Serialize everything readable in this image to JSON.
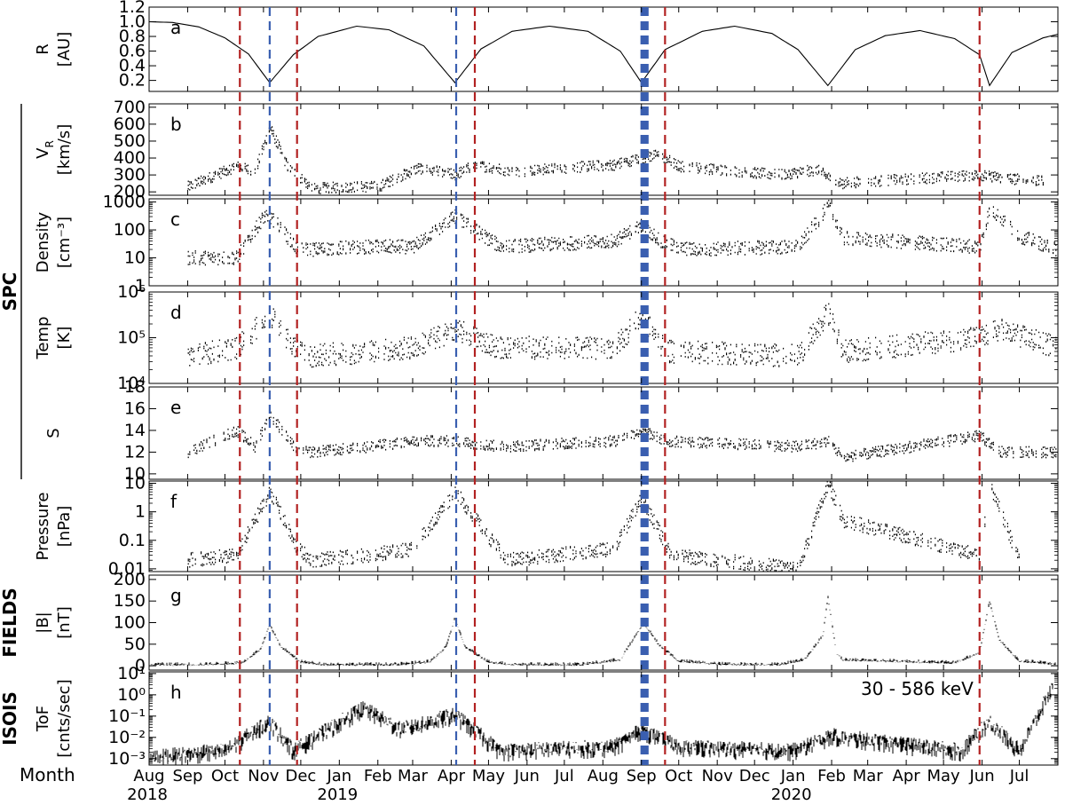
{
  "x_axis": {
    "title": "Month",
    "start": "2018-08-01",
    "end": "2020-08-01",
    "months": [
      "Aug",
      "Sep",
      "Oct",
      "Nov",
      "Dec",
      "Jan",
      "Feb",
      "Mar",
      "Apr",
      "May",
      "Jun",
      "Jul",
      "Aug",
      "Sep",
      "Oct",
      "Nov",
      "Dec",
      "Jan",
      "Feb",
      "Mar",
      "Apr",
      "May",
      "Jun",
      "Jul"
    ],
    "years": [
      {
        "label": "2018",
        "date": "2018-08-01"
      },
      {
        "label": "2019",
        "date": "2019-01-01"
      },
      {
        "label": "2020",
        "date": "2020-01-01"
      }
    ]
  },
  "groups": [
    {
      "label": "SPC",
      "panels": [
        "b",
        "c",
        "d",
        "e"
      ]
    },
    {
      "label": "FIELDS",
      "panels": [
        "g"
      ]
    },
    {
      "label": "ISOIS",
      "panels": [
        "h"
      ]
    }
  ],
  "vertical_markers": {
    "red": [
      "2018-10-13",
      "2018-11-28",
      "2019-04-20",
      "2019-09-20",
      "2020-05-30"
    ],
    "blue": [
      "2018-11-06",
      "2019-04-05",
      "2019-09-01",
      "2019-09-02",
      "2019-09-03",
      "2019-09-04",
      "2019-09-05",
      "2019-09-06"
    ],
    "colors": {
      "red": "#b22222",
      "blue": "#3a5fb0"
    }
  },
  "annotation": "30 - 586 keV",
  "perihelia": [
    "2018-11-06",
    "2019-04-04",
    "2019-09-01",
    "2020-01-29",
    "2020-06-07"
  ],
  "chart_data": [
    {
      "type": "line",
      "panel": "a",
      "ylabel": [
        "R",
        "[AU]"
      ],
      "yticks": [
        "0.2",
        "0.4",
        "0.6",
        "0.8",
        "1.0",
        "1.2"
      ],
      "ylim": [
        0.05,
        1.2
      ],
      "scale": "linear",
      "series": [
        {
          "x": [
            "2018-08-01",
            "2018-08-20",
            "2018-09-10",
            "2018-10-01",
            "2018-10-20",
            "2018-11-06",
            "2018-11-25",
            "2018-12-15",
            "2019-01-15",
            "2019-02-10",
            "2019-03-10",
            "2019-04-04",
            "2019-04-25",
            "2019-05-20",
            "2019-06-19",
            "2019-07-20",
            "2019-08-15",
            "2019-09-01",
            "2019-09-20",
            "2019-10-20",
            "2019-11-15",
            "2019-12-15",
            "2020-01-05",
            "2020-01-29",
            "2020-02-20",
            "2020-03-15",
            "2020-04-12",
            "2020-05-10",
            "2020-05-30",
            "2020-06-07",
            "2020-06-25",
            "2020-07-20",
            "2020-08-01"
          ],
          "y": [
            1.0,
            0.99,
            0.93,
            0.78,
            0.56,
            0.17,
            0.55,
            0.8,
            0.94,
            0.89,
            0.67,
            0.17,
            0.63,
            0.87,
            0.94,
            0.87,
            0.6,
            0.17,
            0.62,
            0.87,
            0.94,
            0.84,
            0.62,
            0.13,
            0.62,
            0.81,
            0.88,
            0.77,
            0.55,
            0.13,
            0.58,
            0.78,
            0.83
          ]
        }
      ]
    },
    {
      "type": "scatter",
      "panel": "b",
      "ylabel": [
        "V_R",
        "[km/s]"
      ],
      "subscript": "R",
      "yticks": [
        "200",
        "300",
        "400",
        "500",
        "600",
        "700"
      ],
      "ylim": [
        180,
        720
      ],
      "scale": "linear",
      "envelope": [
        [
          "2018-09-01",
          230
        ],
        [
          "2018-10-10",
          350
        ],
        [
          "2018-10-25",
          320
        ],
        [
          "2018-11-06",
          580
        ],
        [
          "2018-11-20",
          350
        ],
        [
          "2018-12-10",
          220
        ],
        [
          "2019-01-10",
          230
        ],
        [
          "2019-02-01",
          230
        ],
        [
          "2019-03-05",
          340
        ],
        [
          "2019-04-04",
          300
        ],
        [
          "2019-04-20",
          360
        ],
        [
          "2019-05-20",
          320
        ],
        [
          "2019-08-10",
          360
        ],
        [
          "2019-09-01",
          400
        ],
        [
          "2019-09-15",
          420
        ],
        [
          "2019-10-01",
          350
        ],
        [
          "2019-12-20",
          300
        ],
        [
          "2020-01-20",
          330
        ],
        [
          "2020-02-05",
          250
        ],
        [
          "2020-05-30",
          300
        ],
        [
          "2020-06-20",
          280
        ],
        [
          "2020-07-20",
          260
        ]
      ]
    },
    {
      "type": "scatter",
      "panel": "c",
      "ylabel": [
        "Density",
        "[cm⁻³]"
      ],
      "yticks": [
        "1",
        "10",
        "100",
        "1000"
      ],
      "ylim": [
        1,
        1300
      ],
      "scale": "log",
      "envelope": [
        [
          "2018-09-01",
          10
        ],
        [
          "2018-10-10",
          10
        ],
        [
          "2018-11-01",
          300
        ],
        [
          "2018-11-10",
          200
        ],
        [
          "2018-11-28",
          20
        ],
        [
          "2018-12-10",
          20
        ],
        [
          "2019-01-25",
          25
        ],
        [
          "2019-03-01",
          25
        ],
        [
          "2019-04-04",
          300
        ],
        [
          "2019-05-10",
          25
        ],
        [
          "2019-08-10",
          40
        ],
        [
          "2019-09-01",
          150
        ],
        [
          "2019-09-20",
          30
        ],
        [
          "2019-10-10",
          20
        ],
        [
          "2020-01-05",
          25
        ],
        [
          "2020-01-29",
          700
        ],
        [
          "2020-02-10",
          50
        ],
        [
          "2020-05-30",
          25
        ],
        [
          "2020-06-07",
          600
        ],
        [
          "2020-07-01",
          60
        ],
        [
          "2020-07-31",
          20
        ]
      ]
    },
    {
      "type": "scatter",
      "panel": "d",
      "ylabel": [
        "Temp",
        "[K]"
      ],
      "yticks": [
        "10⁴",
        "10⁵",
        "10⁶"
      ],
      "ylim": [
        10000,
        1000000
      ],
      "scale": "log",
      "envelope": [
        [
          "2018-09-01",
          40000
        ],
        [
          "2018-10-10",
          60000
        ],
        [
          "2018-11-06",
          300000
        ],
        [
          "2018-11-25",
          60000
        ],
        [
          "2018-12-10",
          40000
        ],
        [
          "2019-01-25",
          50000
        ],
        [
          "2019-03-01",
          60000
        ],
        [
          "2019-04-04",
          150000
        ],
        [
          "2019-05-10",
          60000
        ],
        [
          "2019-08-10",
          60000
        ],
        [
          "2019-09-01",
          300000
        ],
        [
          "2019-09-20",
          50000
        ],
        [
          "2020-01-05",
          40000
        ],
        [
          "2020-01-29",
          350000
        ],
        [
          "2020-02-10",
          50000
        ],
        [
          "2020-05-30",
          100000
        ],
        [
          "2020-06-15",
          150000
        ],
        [
          "2020-07-31",
          60000
        ]
      ]
    },
    {
      "type": "scatter",
      "panel": "e",
      "ylabel": [
        "S"
      ],
      "yticks": [
        "10",
        "12",
        "14",
        "16",
        "18"
      ],
      "ylim": [
        9.5,
        18
      ],
      "scale": "linear",
      "envelope": [
        [
          "2018-09-01",
          12
        ],
        [
          "2018-10-10",
          14
        ],
        [
          "2018-10-25",
          12.5
        ],
        [
          "2018-11-06",
          15.5
        ],
        [
          "2018-11-28",
          12
        ],
        [
          "2018-12-10",
          12
        ],
        [
          "2019-01-25",
          12.5
        ],
        [
          "2019-03-01",
          13
        ],
        [
          "2019-04-04",
          13
        ],
        [
          "2019-05-10",
          12.5
        ],
        [
          "2019-08-10",
          13
        ],
        [
          "2019-09-01",
          14
        ],
        [
          "2019-09-20",
          13
        ],
        [
          "2020-01-05",
          12.5
        ],
        [
          "2020-01-29",
          13
        ],
        [
          "2020-02-10",
          11.5
        ],
        [
          "2020-05-30",
          13.5
        ],
        [
          "2020-06-15",
          12
        ],
        [
          "2020-07-31",
          12
        ]
      ]
    },
    {
      "type": "scatter",
      "panel": "f",
      "ylabel": [
        "Pressure",
        "[nPa]"
      ],
      "yticks": [
        "0.01",
        "0.1",
        "1",
        "10"
      ],
      "ylim": [
        0.008,
        12
      ],
      "scale": "log",
      "envelope": [
        [
          "2018-09-01",
          0.02
        ],
        [
          "2018-10-10",
          0.03
        ],
        [
          "2018-11-06",
          5
        ],
        [
          "2018-11-28",
          0.05
        ],
        [
          "2018-12-10",
          0.02
        ],
        [
          "2019-01-25",
          0.03
        ],
        [
          "2019-03-01",
          0.05
        ],
        [
          "2019-04-04",
          5
        ],
        [
          "2019-05-15",
          0.02
        ],
        [
          "2019-08-10",
          0.05
        ],
        [
          "2019-09-01",
          3
        ],
        [
          "2019-09-25",
          0.03
        ],
        [
          "2020-01-05",
          0.01
        ],
        [
          "2020-01-29",
          10
        ],
        [
          "2020-02-10",
          0.5
        ],
        [
          "2020-05-30",
          0.03
        ],
        [
          "2020-06-07",
          8
        ],
        [
          "2020-07-01",
          0.02
        ]
      ]
    },
    {
      "type": "line",
      "panel": "g",
      "ylabel": [
        "|B|",
        "[nT]"
      ],
      "yticks": [
        "0",
        "50",
        "100",
        "150",
        "200"
      ],
      "ylim": [
        -10,
        210
      ],
      "scale": "linear",
      "envelope": [
        [
          "2018-08-01",
          4
        ],
        [
          "2018-09-15",
          4
        ],
        [
          "2018-10-15",
          8
        ],
        [
          "2018-10-30",
          40
        ],
        [
          "2018-11-06",
          95
        ],
        [
          "2018-11-15",
          45
        ],
        [
          "2018-12-01",
          10
        ],
        [
          "2018-12-20",
          4
        ],
        [
          "2019-02-15",
          4
        ],
        [
          "2019-03-15",
          10
        ],
        [
          "2019-03-28",
          45
        ],
        [
          "2019-04-04",
          112
        ],
        [
          "2019-04-12",
          45
        ],
        [
          "2019-05-01",
          10
        ],
        [
          "2019-05-20",
          4
        ],
        [
          "2019-07-15",
          4
        ],
        [
          "2019-08-15",
          15
        ],
        [
          "2019-09-03",
          100
        ],
        [
          "2019-09-15",
          50
        ],
        [
          "2019-10-01",
          12
        ],
        [
          "2019-11-01",
          5
        ],
        [
          "2019-12-20",
          4
        ],
        [
          "2020-01-10",
          15
        ],
        [
          "2020-01-25",
          70
        ],
        [
          "2020-01-29",
          160
        ],
        [
          "2020-02-05",
          30
        ],
        [
          "2020-02-10",
          15
        ],
        [
          "2020-05-10",
          8
        ],
        [
          "2020-05-30",
          30
        ],
        [
          "2020-06-07",
          150
        ],
        [
          "2020-06-15",
          60
        ],
        [
          "2020-07-01",
          12
        ],
        [
          "2020-07-31",
          5
        ]
      ]
    },
    {
      "type": "line",
      "panel": "h",
      "ylabel": [
        "ToF",
        "[cnts/sec]"
      ],
      "yticks": [
        "10⁻³",
        "10⁻²",
        "10⁻¹",
        "10⁰",
        "10¹"
      ],
      "ylim": [
        0.0005,
        12
      ],
      "scale": "log",
      "envelope": [
        [
          "2018-08-01",
          0.001
        ],
        [
          "2018-10-01",
          0.002
        ],
        [
          "2018-11-06",
          0.05
        ],
        [
          "2018-11-25",
          0.002
        ],
        [
          "2019-01-20",
          0.2
        ],
        [
          "2019-02-20",
          0.02
        ],
        [
          "2019-04-04",
          0.1
        ],
        [
          "2019-05-10",
          0.002
        ],
        [
          "2019-08-10",
          0.003
        ],
        [
          "2019-09-01",
          0.02
        ],
        [
          "2019-10-01",
          0.003
        ],
        [
          "2020-01-01",
          0.002
        ],
        [
          "2020-02-01",
          0.01
        ],
        [
          "2020-05-15",
          0.002
        ],
        [
          "2020-06-07",
          0.05
        ],
        [
          "2020-07-01",
          0.002
        ],
        [
          "2020-07-28",
          2
        ]
      ]
    }
  ]
}
